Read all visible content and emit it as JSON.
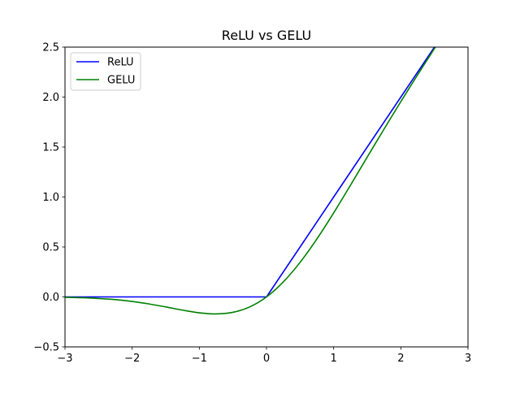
{
  "chart_data": {
    "type": "line",
    "title": "ReLU vs GELU",
    "xlabel": "",
    "ylabel": "",
    "xlim": [
      -3,
      3
    ],
    "ylim": [
      -0.5,
      2.5
    ],
    "xticks": [
      -3,
      -2,
      -1,
      0,
      1,
      2,
      3
    ],
    "xtick_labels": [
      "−3",
      "−2",
      "−1",
      "0",
      "1",
      "2",
      "3"
    ],
    "yticks": [
      -0.5,
      0.0,
      0.5,
      1.0,
      1.5,
      2.0,
      2.5
    ],
    "ytick_labels": [
      "−0.5",
      "0.0",
      "0.5",
      "1.0",
      "1.5",
      "2.0",
      "2.5"
    ],
    "grid": false,
    "legend": {
      "location": "upper-left"
    },
    "series": [
      {
        "name": "ReLU",
        "color": "#0000ff",
        "x": [
          -3.0,
          -2.0,
          -1.0,
          0.0,
          1.0,
          2.0,
          2.5
        ],
        "y": [
          0.0,
          0.0,
          0.0,
          0.0,
          1.0,
          2.0,
          2.5
        ]
      },
      {
        "name": "GELU",
        "color": "#008000",
        "x": [
          -3.0,
          -2.75,
          -2.5,
          -2.25,
          -2.0,
          -1.75,
          -1.5,
          -1.25,
          -1.0,
          -0.75,
          -0.5,
          -0.25,
          0.0,
          0.25,
          0.5,
          0.75,
          1.0,
          1.25,
          1.5,
          1.75,
          2.0,
          2.25,
          2.5,
          2.55
        ],
        "y": [
          -0.004,
          -0.008,
          -0.016,
          -0.027,
          -0.045,
          -0.07,
          -0.1,
          -0.132,
          -0.159,
          -0.17,
          -0.154,
          -0.1,
          0.0,
          0.15,
          0.346,
          0.58,
          0.841,
          1.118,
          1.4,
          1.68,
          1.955,
          2.223,
          2.485,
          2.537
        ]
      }
    ]
  }
}
